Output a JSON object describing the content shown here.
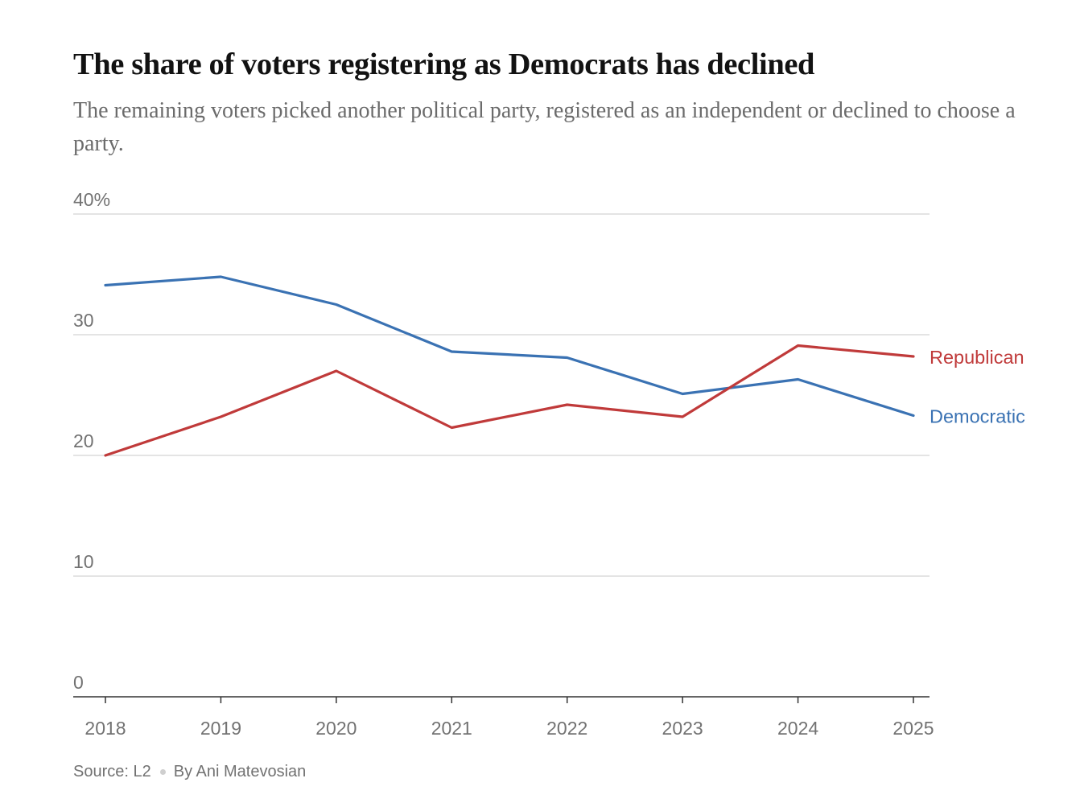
{
  "chart_data": {
    "type": "line",
    "title": "The share of voters registering as Democrats has declined",
    "subtitle": "The remaining voters picked another political party, registered as an independent or declined to choose a party.",
    "x": [
      2018,
      2019,
      2020,
      2021,
      2022,
      2023,
      2024,
      2025
    ],
    "x_tick_labels": [
      "2018",
      "2019",
      "2020",
      "2021",
      "2022",
      "2023",
      "2024",
      "2025"
    ],
    "y_ticks": [
      0,
      10,
      20,
      30,
      40
    ],
    "y_tick_labels": [
      "0",
      "10",
      "20",
      "30",
      "40%"
    ],
    "ylim": [
      0,
      40
    ],
    "grid": true,
    "series": [
      {
        "name": "Democratic",
        "color": "#3a72b3",
        "values": [
          34.1,
          34.8,
          32.5,
          28.6,
          28.1,
          25.1,
          26.3,
          23.3
        ]
      },
      {
        "name": "Republican",
        "color": "#c03a3a",
        "values": [
          20.0,
          23.2,
          27.0,
          22.3,
          24.2,
          23.2,
          29.1,
          28.2
        ]
      }
    ],
    "source": "Source: L2",
    "byline": "By Ani Matevosian"
  }
}
